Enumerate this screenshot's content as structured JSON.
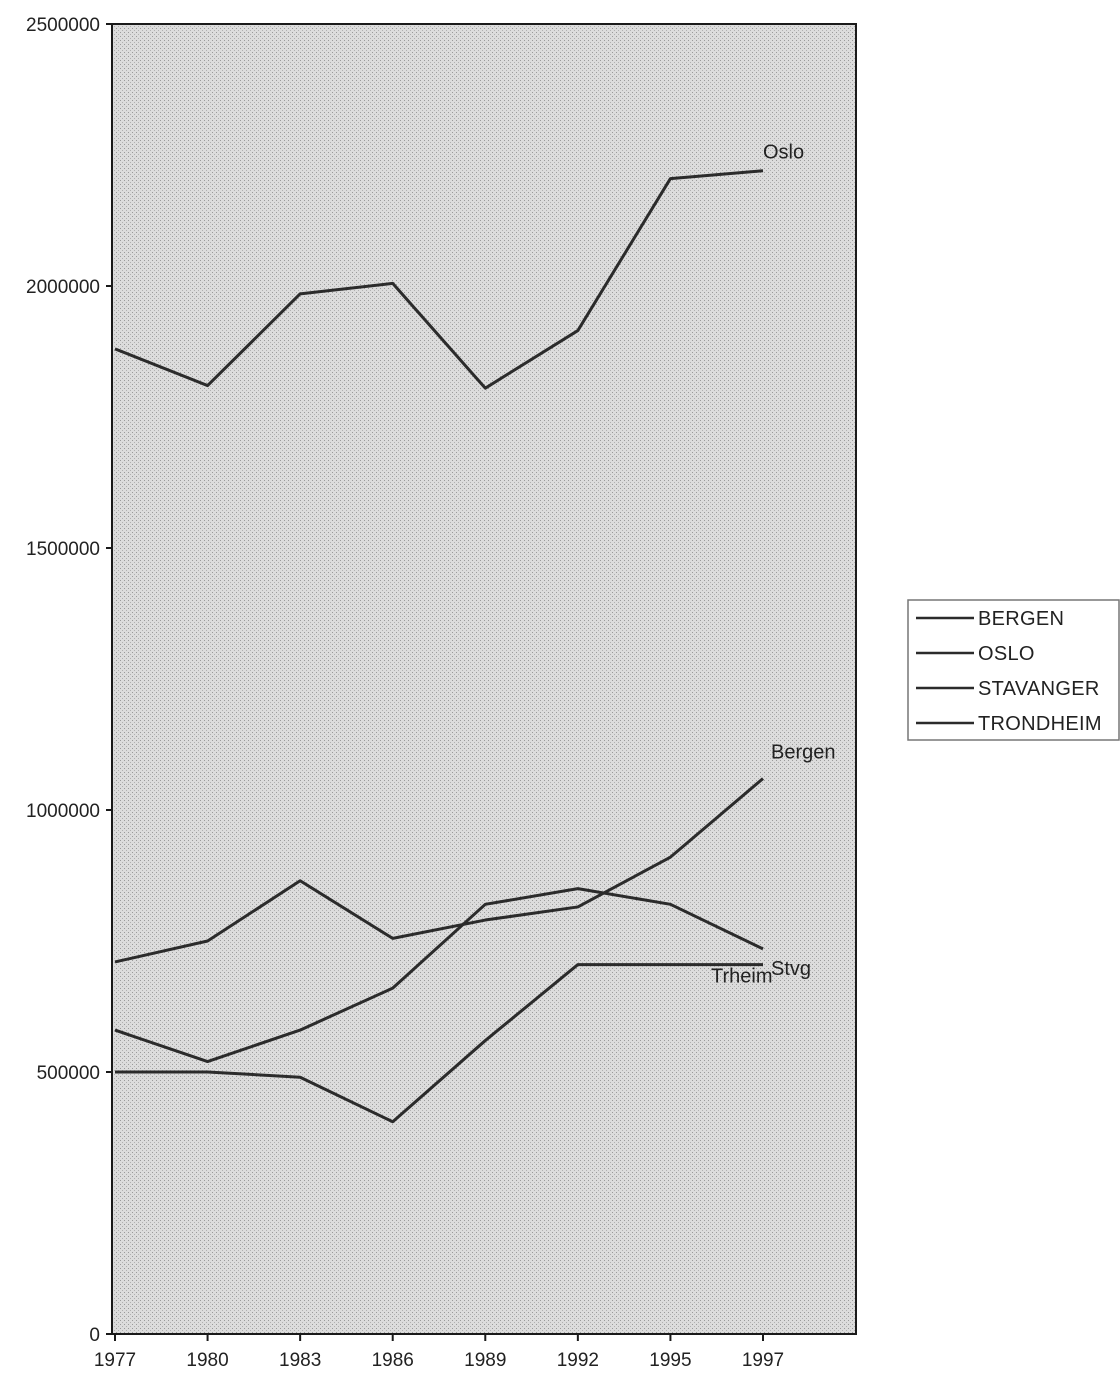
{
  "chart_data": {
    "type": "line",
    "title": "",
    "xlabel": "",
    "ylabel": "",
    "x": [
      "1977",
      "1980",
      "1983",
      "1986",
      "1989",
      "1992",
      "1995",
      "1997"
    ],
    "ylim": [
      0,
      2500000
    ],
    "yticks": [
      "0",
      "500000",
      "1000000",
      "1500000",
      "2000000",
      "2500000"
    ],
    "grid": false,
    "legend_position": "right",
    "series": [
      {
        "name": "BERGEN",
        "short_label": "Bergen",
        "values": [
          580000,
          520000,
          580000,
          660000,
          820000,
          850000,
          820000,
          735000
        ]
      },
      {
        "name": "OSLO",
        "short_label": "Oslo",
        "values": [
          1880000,
          1810000,
          1985000,
          2005000,
          1805000,
          1915000,
          2205000,
          2220000
        ]
      },
      {
        "name": "STAVANGER",
        "short_label": "Stvg",
        "values": [
          710000,
          750000,
          865000,
          755000,
          790000,
          815000,
          910000,
          1060000
        ]
      },
      {
        "name": "TRONDHEIM",
        "short_label": "Trheim",
        "values": [
          500000,
          500000,
          490000,
          405000,
          560000,
          705000,
          705000,
          705000
        ]
      }
    ],
    "colors": {
      "line": "#2b2b2b",
      "plot_background": "#d6d6d6",
      "axis": "#1a1a1a"
    }
  }
}
